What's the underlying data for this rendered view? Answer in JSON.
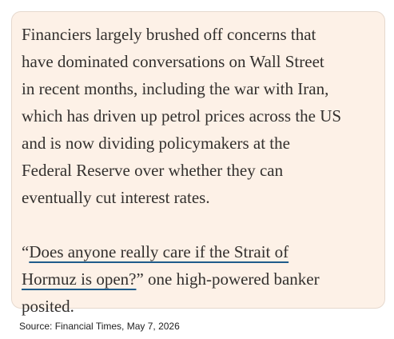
{
  "body": {
    "paragraph_lines": [
      "Financiers largely brushed off concerns that",
      "have dominated conversations on Wall Street",
      "in recent months, including the war with Iran,",
      "which has driven up petrol prices across the US",
      "and is now dividing policymakers at the",
      "Federal Reserve over whether they can",
      "eventually cut interest rates."
    ],
    "quote_lines": [
      [
        {
          "text": "“"
        },
        {
          "text": "Does anyone really care if the Strait of",
          "link": true
        }
      ],
      [
        {
          "text": "Hormuz is open?",
          "link": true
        },
        {
          "text": "” one high-powered banker"
        }
      ],
      [
        {
          "text": "posited."
        }
      ]
    ]
  },
  "footer": {
    "source": "Source: Financial Times, May 7, 2026"
  }
}
